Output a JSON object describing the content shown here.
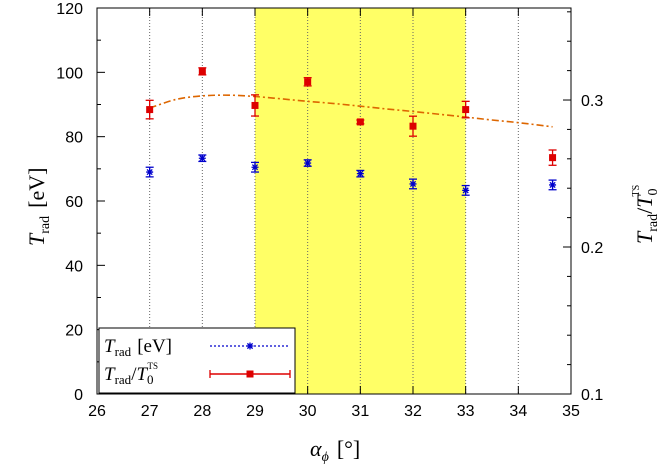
{
  "chart_data": {
    "type": "scatter",
    "title": "",
    "xlabel_main": "α",
    "xlabel_sub": "ϕ",
    "xlabel_unit": "[°]",
    "ylabel_left_main": "T",
    "ylabel_left_sub": "rad",
    "ylabel_left_unit": "[eV]",
    "ylabel_right_main": "T",
    "ylabel_right_sub": "rad",
    "ylabel_right_sep": "/",
    "ylabel_right_main2": "T",
    "ylabel_right_sub2": "0",
    "ylabel_right_sup2": "TS",
    "xlim": [
      26,
      35
    ],
    "ylim_left": [
      0,
      120
    ],
    "ylim_right": [
      0.1,
      0.3626
    ],
    "x_ticks": [
      26,
      27,
      28,
      29,
      30,
      31,
      32,
      33,
      34,
      35
    ],
    "y_left_ticks": [
      0,
      20,
      40,
      60,
      80,
      100,
      120
    ],
    "y_right_ticks": [
      0.1,
      0.2,
      0.3
    ],
    "shaded_region": {
      "x_start": 29,
      "x_end": 33,
      "color": "#ffff66"
    },
    "vertical_gridlines": [
      27,
      28,
      29,
      30,
      31,
      32,
      33,
      34
    ],
    "series": [
      {
        "name": "T_rad [eV]",
        "axis": "left",
        "color": "#0000cc",
        "marker": "asterisk",
        "x": [
          27.0,
          28.0,
          29.0,
          30.0,
          31.0,
          32.0,
          33.0,
          34.65
        ],
        "y": [
          69.0,
          73.3,
          70.5,
          71.8,
          68.5,
          65.3,
          63.3,
          65.0
        ],
        "err": [
          1.5,
          1.0,
          1.5,
          1.0,
          1.0,
          1.5,
          1.5,
          1.5
        ]
      },
      {
        "name": "T_rad/T_0^TS",
        "axis": "right",
        "color": "#dd0000",
        "marker": "square",
        "x": [
          27.0,
          28.0,
          29.0,
          30.0,
          31.0,
          32.0,
          33.0,
          34.65
        ],
        "y": [
          0.2935,
          0.3195,
          0.2963,
          0.3124,
          0.2851,
          0.2822,
          0.2935,
          0.2608
        ],
        "err": [
          0.0063,
          0.0024,
          0.0072,
          0.0028,
          0.0013,
          0.0068,
          0.0056,
          0.0052
        ]
      }
    ],
    "fit_curve": {
      "axis": "right",
      "color": "#dd6600",
      "x": [
        27.0,
        27.5,
        28.0,
        28.5,
        29.0,
        29.5,
        30.0,
        30.5,
        31.0,
        31.5,
        32.0,
        32.5,
        33.0,
        33.5,
        34.0,
        34.65
      ],
      "y": [
        0.2945,
        0.3004,
        0.3028,
        0.3033,
        0.3024,
        0.3008,
        0.2991,
        0.2976,
        0.2958,
        0.2939,
        0.2922,
        0.2903,
        0.2884,
        0.2864,
        0.2846,
        0.2818
      ]
    },
    "legend": {
      "placement": "bottom-left",
      "entries": [
        {
          "main": "T",
          "sub": "rad",
          "unit": "[eV]"
        },
        {
          "main": "T",
          "sub": "rad",
          "sep": "/",
          "main2": "T",
          "sub2": "0",
          "sup2": "TS"
        }
      ]
    }
  }
}
